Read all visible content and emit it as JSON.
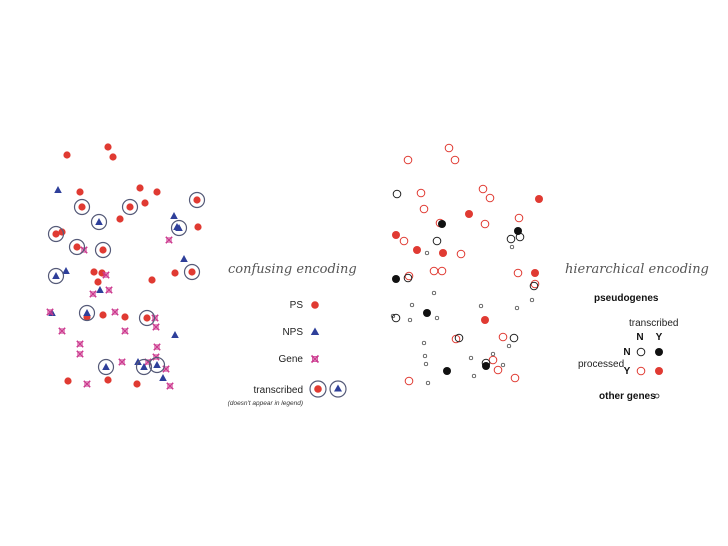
{
  "left_panel": {
    "title": "confusing encoding",
    "legend": {
      "ps": "PS",
      "nps": "NPS",
      "gene": "Gene",
      "transcribed": "transcribed",
      "note": "(doesn't appear in legend)"
    }
  },
  "right_panel": {
    "title": "hierarchical encoding",
    "legend": {
      "heading": "pseudogenes",
      "transcribed": "transcribed",
      "col_n": "N",
      "col_y": "Y",
      "processed": "processed",
      "row_n": "N",
      "row_y": "Y",
      "other": "other genes"
    }
  },
  "colors": {
    "red": "#e03a32",
    "blue": "#2e3f9a",
    "pink": "#cc3b8f",
    "ring": "#555a78",
    "black": "#111111"
  }
}
